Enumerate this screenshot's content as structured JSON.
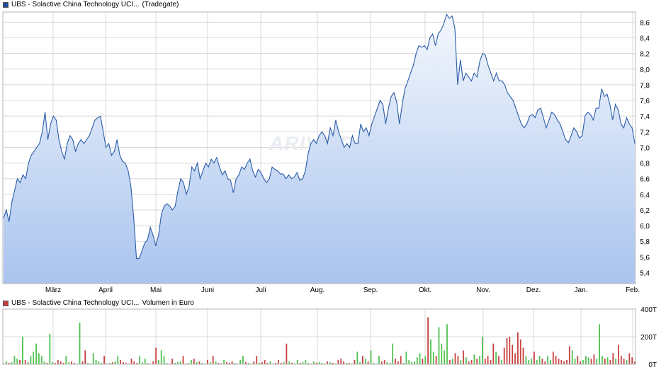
{
  "legend": {
    "price_name": "UBS - Solactive China Technology UCI...",
    "price_exchange": "(Tradegate)",
    "volume_name": "UBS - Solactive China Technology UCI...",
    "volume_unit": "Volumen in Euro"
  },
  "watermark": "ARIVA.DE",
  "colors": {
    "price_line": "#2a5ca8",
    "fill_top": "#f4f7fd",
    "fill_bottom": "#a9c4ee",
    "grid": "#d8d8d8",
    "vol_up": "#4fc14f",
    "vol_down": "#c84040"
  },
  "chart_data": [
    {
      "type": "area",
      "title": "",
      "x_labels": [
        "März",
        "April",
        "Mai",
        "Juni",
        "Juli",
        "Aug.",
        "Sep.",
        "Okt.",
        "Nov.",
        "Dez.",
        "Jan.",
        "Feb."
      ],
      "y_ticks": [
        "5,4",
        "5,6",
        "5,8",
        "6,0",
        "6,2",
        "6,4",
        "6,6",
        "6,8",
        "7,0",
        "7,2",
        "7,4",
        "7,6",
        "7,8",
        "8,0",
        "8,2",
        "8,4",
        "8,6"
      ],
      "ylim": [
        5.26,
        8.73
      ],
      "grid": true,
      "series": [
        {
          "values": [
            6.1,
            6.2,
            6.05,
            6.3,
            6.45,
            6.6,
            6.55,
            6.65,
            6.6,
            6.8,
            6.9,
            6.95,
            7.0,
            7.05,
            7.2,
            7.45,
            7.1,
            7.3,
            7.4,
            7.35,
            7.1,
            6.95,
            6.85,
            7.05,
            7.15,
            7.1,
            6.95,
            7.05,
            7.1,
            7.05,
            7.1,
            7.15,
            7.25,
            7.35,
            7.38,
            7.4,
            7.2,
            7.0,
            7.05,
            6.9,
            6.95,
            7.1,
            6.9,
            6.82,
            6.8,
            6.7,
            6.5,
            6.1,
            5.58,
            5.58,
            5.68,
            5.78,
            5.82,
            5.98,
            5.88,
            5.74,
            5.88,
            6.15,
            6.25,
            6.28,
            6.25,
            6.2,
            6.25,
            6.45,
            6.6,
            6.55,
            6.4,
            6.5,
            6.75,
            6.7,
            6.8,
            6.6,
            6.7,
            6.8,
            6.75,
            6.85,
            6.8,
            6.87,
            6.75,
            6.65,
            6.7,
            6.6,
            6.58,
            6.42,
            6.6,
            6.65,
            6.75,
            6.72,
            6.8,
            6.85,
            6.7,
            6.62,
            6.72,
            6.68,
            6.6,
            6.55,
            6.6,
            6.75,
            6.72,
            6.7,
            6.66,
            6.66,
            6.6,
            6.65,
            6.6,
            6.62,
            6.68,
            6.58,
            6.6,
            6.7,
            6.92,
            7.05,
            7.1,
            7.05,
            7.15,
            7.2,
            7.15,
            7.05,
            7.25,
            7.15,
            7.35,
            7.2,
            7.1,
            7.0,
            7.05,
            7.0,
            7.15,
            7.05,
            7.05,
            7.3,
            7.2,
            7.25,
            7.15,
            7.3,
            7.4,
            7.5,
            7.6,
            7.55,
            7.3,
            7.5,
            7.65,
            7.7,
            7.58,
            7.3,
            7.55,
            7.75,
            7.85,
            7.95,
            8.05,
            8.2,
            8.3,
            8.28,
            8.3,
            8.25,
            8.4,
            8.45,
            8.3,
            8.45,
            8.5,
            8.58,
            8.7,
            8.65,
            8.68,
            8.52,
            7.8,
            8.12,
            7.85,
            7.95,
            7.9,
            7.85,
            7.95,
            7.9,
            8.1,
            8.2,
            8.18,
            8.05,
            7.95,
            7.85,
            7.95,
            7.85,
            7.85,
            7.8,
            7.7,
            7.65,
            7.6,
            7.5,
            7.4,
            7.3,
            7.25,
            7.3,
            7.4,
            7.42,
            7.38,
            7.48,
            7.5,
            7.38,
            7.25,
            7.35,
            7.45,
            7.42,
            7.35,
            7.3,
            7.2,
            7.1,
            7.06,
            7.15,
            7.25,
            7.2,
            7.12,
            7.15,
            7.4,
            7.45,
            7.42,
            7.35,
            7.5,
            7.5,
            7.75,
            7.65,
            7.68,
            7.55,
            7.35,
            7.55,
            7.48,
            7.3,
            7.25,
            7.38,
            7.3,
            7.25,
            7.05
          ]
        }
      ]
    },
    {
      "type": "bar",
      "title": "",
      "x_labels": [
        "März",
        "April",
        "Mai",
        "Juni",
        "Juli",
        "Aug.",
        "Sep.",
        "Okt.",
        "Nov.",
        "Dez.",
        "Jan.",
        "Feb."
      ],
      "y_ticks": [
        "0T",
        "200T",
        "400T"
      ],
      "ylim": [
        0,
        400
      ],
      "grid": true,
      "series": [
        {
          "name": "Volumen in Euro",
          "values": [
            5,
            20,
            10,
            15,
            60,
            40,
            30,
            200,
            30,
            15,
            60,
            90,
            150,
            80,
            60,
            20,
            10,
            220,
            15,
            10,
            30,
            20,
            10,
            60,
            15,
            20,
            10,
            5,
            300,
            20,
            100,
            10,
            5,
            80,
            30,
            20,
            10,
            60,
            5,
            10,
            15,
            20,
            60,
            30,
            15,
            10,
            5,
            40,
            20,
            10,
            60,
            15,
            40,
            10,
            5,
            20,
            120,
            30,
            100,
            60,
            10,
            5,
            40,
            10,
            15,
            20,
            60,
            5,
            10,
            30,
            40,
            15,
            20,
            10,
            5,
            30,
            15,
            60,
            20,
            10,
            5,
            30,
            15,
            10,
            20,
            10,
            5,
            30,
            60,
            15,
            10,
            5,
            20,
            60,
            10,
            15,
            30,
            10,
            20,
            5,
            10,
            30,
            10,
            15,
            150,
            20,
            10,
            5,
            30,
            10,
            15,
            30,
            10,
            5,
            20,
            10,
            15,
            10,
            5,
            20,
            15,
            10,
            5,
            30,
            40,
            20,
            10,
            10,
            5,
            30,
            90,
            15,
            60,
            40,
            20,
            100,
            10,
            5,
            60,
            20,
            30,
            15,
            10,
            150,
            40,
            20,
            60,
            10,
            90,
            30,
            15,
            20,
            50,
            80,
            40,
            60,
            340,
            180,
            90,
            60,
            270,
            150,
            100,
            290,
            30,
            40,
            80,
            60,
            30,
            100,
            50,
            20,
            30,
            70,
            40,
            60,
            200,
            40,
            60,
            30,
            150,
            90,
            60,
            30,
            120,
            190,
            200,
            140,
            80,
            230,
            180,
            120,
            60,
            30,
            40,
            90,
            30,
            60,
            40,
            20,
            60,
            30,
            90,
            60,
            40,
            30,
            20,
            30,
            130,
            100,
            40,
            60,
            20,
            30,
            60,
            50,
            40,
            70,
            40,
            290,
            60,
            40,
            50,
            30,
            80,
            40,
            140,
            60,
            40,
            30,
            80,
            50,
            20
          ]
        }
      ]
    }
  ]
}
